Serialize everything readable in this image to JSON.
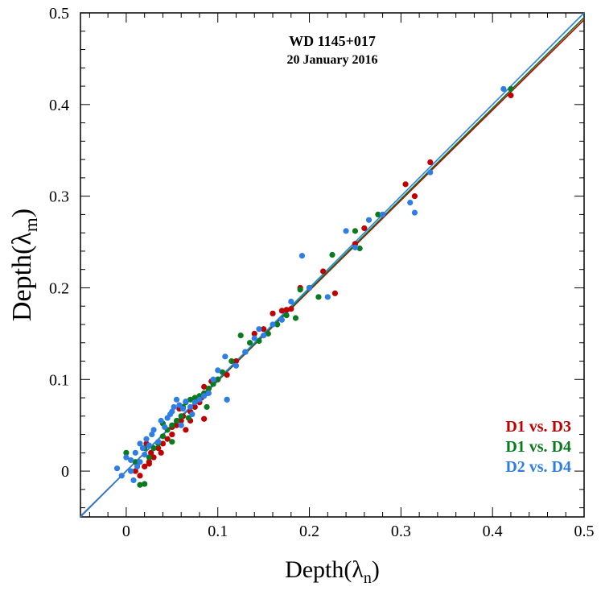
{
  "chart_data": {
    "type": "scatter",
    "title": "WD 1145+017",
    "subtitle": "20 January 2016",
    "xlabel": {
      "main": "Depth(λ",
      "sub": "n",
      "close": ")"
    },
    "ylabel": {
      "main": "Depth(λ",
      "sub": "m",
      "close": ")"
    },
    "xlim": [
      -0.05,
      0.5
    ],
    "ylim": [
      -0.05,
      0.5
    ],
    "xticks": [
      {
        "value": 0,
        "label": "0"
      },
      {
        "value": 0.1,
        "label": "0.1"
      },
      {
        "value": 0.2,
        "label": "0.2"
      },
      {
        "value": 0.3,
        "label": "0.3"
      },
      {
        "value": 0.4,
        "label": "0.4"
      },
      {
        "value": 0.5,
        "label": "0.5"
      }
    ],
    "yticks": [
      {
        "value": 0,
        "label": "0"
      },
      {
        "value": 0.1,
        "label": "0.1"
      },
      {
        "value": 0.2,
        "label": "0.2"
      },
      {
        "value": 0.3,
        "label": "0.3"
      },
      {
        "value": 0.4,
        "label": "0.4"
      },
      {
        "value": 0.5,
        "label": "0.5"
      }
    ],
    "minor_tick_step": 0.02,
    "legend_position": "bottom-right",
    "fit_lines": [
      {
        "name": "D1 vs. D3 fit",
        "color": "#c00000",
        "slope": 0.985,
        "intercept": 0.0
      },
      {
        "name": "D1 vs. D4 fit",
        "color": "#0a7a1e",
        "slope": 0.99,
        "intercept": 0.0
      },
      {
        "name": "D2 vs. D4 fit",
        "color": "#2f7ee6",
        "slope": 1.0,
        "intercept": 0.0
      }
    ],
    "series": [
      {
        "name": "D1 vs. D3",
        "color": "#c00000",
        "points": [
          [
            0.01,
            0.0
          ],
          [
            0.015,
            -0.005
          ],
          [
            0.02,
            0.005
          ],
          [
            0.025,
            0.01
          ],
          [
            0.027,
            0.02
          ],
          [
            0.025,
            0.008
          ],
          [
            0.03,
            0.015
          ],
          [
            0.035,
            0.025
          ],
          [
            0.038,
            0.02
          ],
          [
            0.04,
            0.03
          ],
          [
            0.045,
            0.035
          ],
          [
            0.05,
            0.04
          ],
          [
            0.05,
            0.048
          ],
          [
            0.055,
            0.05
          ],
          [
            0.06,
            0.055
          ],
          [
            0.062,
            0.06
          ],
          [
            0.065,
            0.045
          ],
          [
            0.07,
            0.065
          ],
          [
            0.07,
            0.055
          ],
          [
            0.075,
            0.07
          ],
          [
            0.08,
            0.075
          ],
          [
            0.082,
            0.08
          ],
          [
            0.085,
            0.092
          ],
          [
            0.088,
            0.085
          ],
          [
            0.09,
            0.09
          ],
          [
            0.093,
            0.098
          ],
          [
            0.085,
            0.057
          ],
          [
            0.1,
            0.1
          ],
          [
            0.11,
            0.105
          ],
          [
            0.12,
            0.12
          ],
          [
            0.13,
            0.13
          ],
          [
            0.14,
            0.15
          ],
          [
            0.15,
            0.155
          ],
          [
            0.16,
            0.172
          ],
          [
            0.17,
            0.175
          ],
          [
            0.175,
            0.176
          ],
          [
            0.18,
            0.177
          ],
          [
            0.19,
            0.2
          ],
          [
            0.2,
            0.2
          ],
          [
            0.215,
            0.218
          ],
          [
            0.228,
            0.194
          ],
          [
            0.25,
            0.248
          ],
          [
            0.26,
            0.265
          ],
          [
            0.305,
            0.313
          ],
          [
            0.315,
            0.3
          ],
          [
            0.332,
            0.337
          ],
          [
            0.42,
            0.41
          ],
          [
            0.012,
            0.008
          ],
          [
            0.022,
            0.03
          ],
          [
            0.058,
            0.068
          ]
        ]
      },
      {
        "name": "D1 vs. D4",
        "color": "#0a7a1e",
        "points": [
          [
            0.0,
            0.02
          ],
          [
            0.01,
            0.01
          ],
          [
            0.015,
            -0.015
          ],
          [
            0.02,
            -0.014
          ],
          [
            0.025,
            0.015
          ],
          [
            0.03,
            0.025
          ],
          [
            0.035,
            0.03
          ],
          [
            0.04,
            0.038
          ],
          [
            0.045,
            0.045
          ],
          [
            0.05,
            0.032
          ],
          [
            0.055,
            0.055
          ],
          [
            0.06,
            0.06
          ],
          [
            0.062,
            0.07
          ],
          [
            0.065,
            0.075
          ],
          [
            0.07,
            0.078
          ],
          [
            0.075,
            0.08
          ],
          [
            0.08,
            0.082
          ],
          [
            0.085,
            0.085
          ],
          [
            0.09,
            0.09
          ],
          [
            0.095,
            0.095
          ],
          [
            0.1,
            0.1
          ],
          [
            0.105,
            0.108
          ],
          [
            0.11,
            0.078
          ],
          [
            0.115,
            0.12
          ],
          [
            0.125,
            0.148
          ],
          [
            0.13,
            0.13
          ],
          [
            0.135,
            0.14
          ],
          [
            0.145,
            0.142
          ],
          [
            0.155,
            0.15
          ],
          [
            0.165,
            0.16
          ],
          [
            0.175,
            0.17
          ],
          [
            0.185,
            0.167
          ],
          [
            0.19,
            0.198
          ],
          [
            0.2,
            0.2
          ],
          [
            0.21,
            0.19
          ],
          [
            0.225,
            0.236
          ],
          [
            0.25,
            0.262
          ],
          [
            0.255,
            0.243
          ],
          [
            0.275,
            0.28
          ],
          [
            0.42,
            0.417
          ],
          [
            0.02,
            0.025
          ],
          [
            0.04,
            0.052
          ],
          [
            0.068,
            0.058
          ],
          [
            0.088,
            0.07
          ],
          [
            0.05,
            0.05
          ]
        ]
      },
      {
        "name": "D2 vs. D4",
        "color": "#2f7ee6",
        "points": [
          [
            -0.01,
            0.003
          ],
          [
            -0.005,
            -0.005
          ],
          [
            0.0,
            0.015
          ],
          [
            0.005,
            0.012
          ],
          [
            0.008,
            -0.01
          ],
          [
            0.01,
            0.02
          ],
          [
            0.012,
            0.005
          ],
          [
            0.015,
            0.03
          ],
          [
            0.018,
            0.025
          ],
          [
            0.02,
            0.018
          ],
          [
            0.022,
            0.035
          ],
          [
            0.025,
            0.028
          ],
          [
            0.028,
            0.04
          ],
          [
            0.03,
            0.045
          ],
          [
            0.035,
            0.032
          ],
          [
            0.038,
            0.055
          ],
          [
            0.042,
            0.048
          ],
          [
            0.045,
            0.058
          ],
          [
            0.048,
            0.062
          ],
          [
            0.05,
            0.065
          ],
          [
            0.052,
            0.07
          ],
          [
            0.055,
            0.078
          ],
          [
            0.058,
            0.072
          ],
          [
            0.062,
            0.068
          ],
          [
            0.065,
            0.076
          ],
          [
            0.07,
            0.07
          ],
          [
            0.075,
            0.075
          ],
          [
            0.08,
            0.078
          ],
          [
            0.085,
            0.082
          ],
          [
            0.09,
            0.085
          ],
          [
            0.095,
            0.1
          ],
          [
            0.1,
            0.11
          ],
          [
            0.108,
            0.125
          ],
          [
            0.11,
            0.078
          ],
          [
            0.12,
            0.115
          ],
          [
            0.13,
            0.13
          ],
          [
            0.14,
            0.145
          ],
          [
            0.145,
            0.155
          ],
          [
            0.15,
            0.148
          ],
          [
            0.16,
            0.16
          ],
          [
            0.17,
            0.165
          ],
          [
            0.18,
            0.185
          ],
          [
            0.192,
            0.235
          ],
          [
            0.2,
            0.2
          ],
          [
            0.22,
            0.19
          ],
          [
            0.24,
            0.262
          ],
          [
            0.25,
            0.244
          ],
          [
            0.265,
            0.274
          ],
          [
            0.28,
            0.28
          ],
          [
            0.31,
            0.293
          ],
          [
            0.315,
            0.282
          ],
          [
            0.332,
            0.326
          ],
          [
            0.412,
            0.417
          ],
          [
            0.005,
            0.0
          ],
          [
            0.015,
            0.01
          ],
          [
            0.06,
            0.05
          ],
          [
            0.072,
            0.062
          ]
        ]
      }
    ]
  }
}
